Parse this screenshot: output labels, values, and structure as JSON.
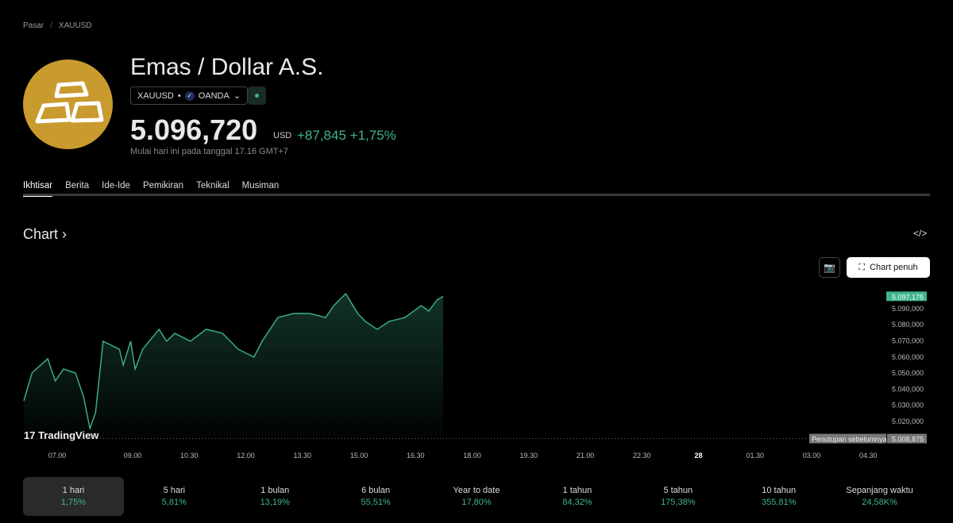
{
  "breadcrumb": {
    "root": "Pasar",
    "current": "XAUUSD"
  },
  "header": {
    "title": "Emas / Dollar A.S.",
    "symbol": "XAUUSD",
    "exchange": "OANDA",
    "price": "5.096,720",
    "currency": "USD",
    "change": "+87,845",
    "change_pct": "+1,75%",
    "subtitle": "Mulai hari ini pada tanggal 17.16 GMT+7"
  },
  "tabs": [
    "Ikhtisar",
    "Berita",
    "Ide-Ide",
    "Pemikiran",
    "Teknikal",
    "Musiman"
  ],
  "chart_section": {
    "title": "Chart",
    "fullscreen_label": "Chart penuh",
    "watermark": "TradingView"
  },
  "colors": {
    "up": "#3fb58e",
    "logo": "#c99a2e"
  },
  "chart_data": {
    "type": "area",
    "x": [
      "06.07",
      "06.20",
      "06.45",
      "06.57",
      "07.10",
      "07.29",
      "07.42",
      "07.52",
      "08.01",
      "08.13",
      "08.39",
      "08.45",
      "08.57",
      "09.04",
      "09.16",
      "09.42",
      "09.54",
      "10.07",
      "10.32",
      "10.57",
      "11.23",
      "11.48",
      "12.13",
      "12.26",
      "12.51",
      "13.16",
      "13.42",
      "14.07",
      "14.20",
      "14.39",
      "14.58",
      "15.10",
      "15.29",
      "15.48",
      "16.13",
      "16.39",
      "16.51",
      "17.04",
      "17.14"
    ],
    "values": [
      5032.3,
      5049.6,
      5058.4,
      5044.6,
      5052.0,
      5049.6,
      5034.8,
      5015.1,
      5024.9,
      5069.3,
      5064.3,
      5054.5,
      5069.3,
      5052.0,
      5064.3,
      5076.7,
      5069.3,
      5074.2,
      5069.3,
      5076.7,
      5074.2,
      5064.3,
      5059.4,
      5069.3,
      5084.0,
      5086.5,
      5086.5,
      5084.0,
      5091.4,
      5098.8,
      5086.5,
      5081.6,
      5076.7,
      5081.6,
      5084.0,
      5091.4,
      5088.0,
      5094.9,
      5097.175
    ],
    "y_ticks": [
      "5.090,000",
      "5.080,000",
      "5.070,000",
      "5.060,000",
      "5.050,000",
      "5.040,000",
      "5.030,000",
      "5.020,000"
    ],
    "x_ticks": [
      "07.00",
      "09.00",
      "10.30",
      "12.00",
      "13.30",
      "15.00",
      "16.30",
      "18.00",
      "19.30",
      "21.00",
      "22.30",
      "28",
      "01.30",
      "03.00",
      "04.30"
    ],
    "last_label": "5.097,175",
    "prev_close_label": "Penutupan sebelumnya",
    "prev_close_value": "5.008,875",
    "prev_close": 5008.875
  },
  "periods": [
    {
      "label": "1 hari",
      "value": "1,75%"
    },
    {
      "label": "5 hari",
      "value": "5,81%"
    },
    {
      "label": "1 bulan",
      "value": "13,19%"
    },
    {
      "label": "6 bulan",
      "value": "55,51%"
    },
    {
      "label": "Year to date",
      "value": "17,80%"
    },
    {
      "label": "1 tahun",
      "value": "84,32%"
    },
    {
      "label": "5 tahun",
      "value": "175,38%"
    },
    {
      "label": "10 tahun",
      "value": "355,81%"
    },
    {
      "label": "Sepanjang waktu",
      "value": "24,58K%"
    }
  ]
}
